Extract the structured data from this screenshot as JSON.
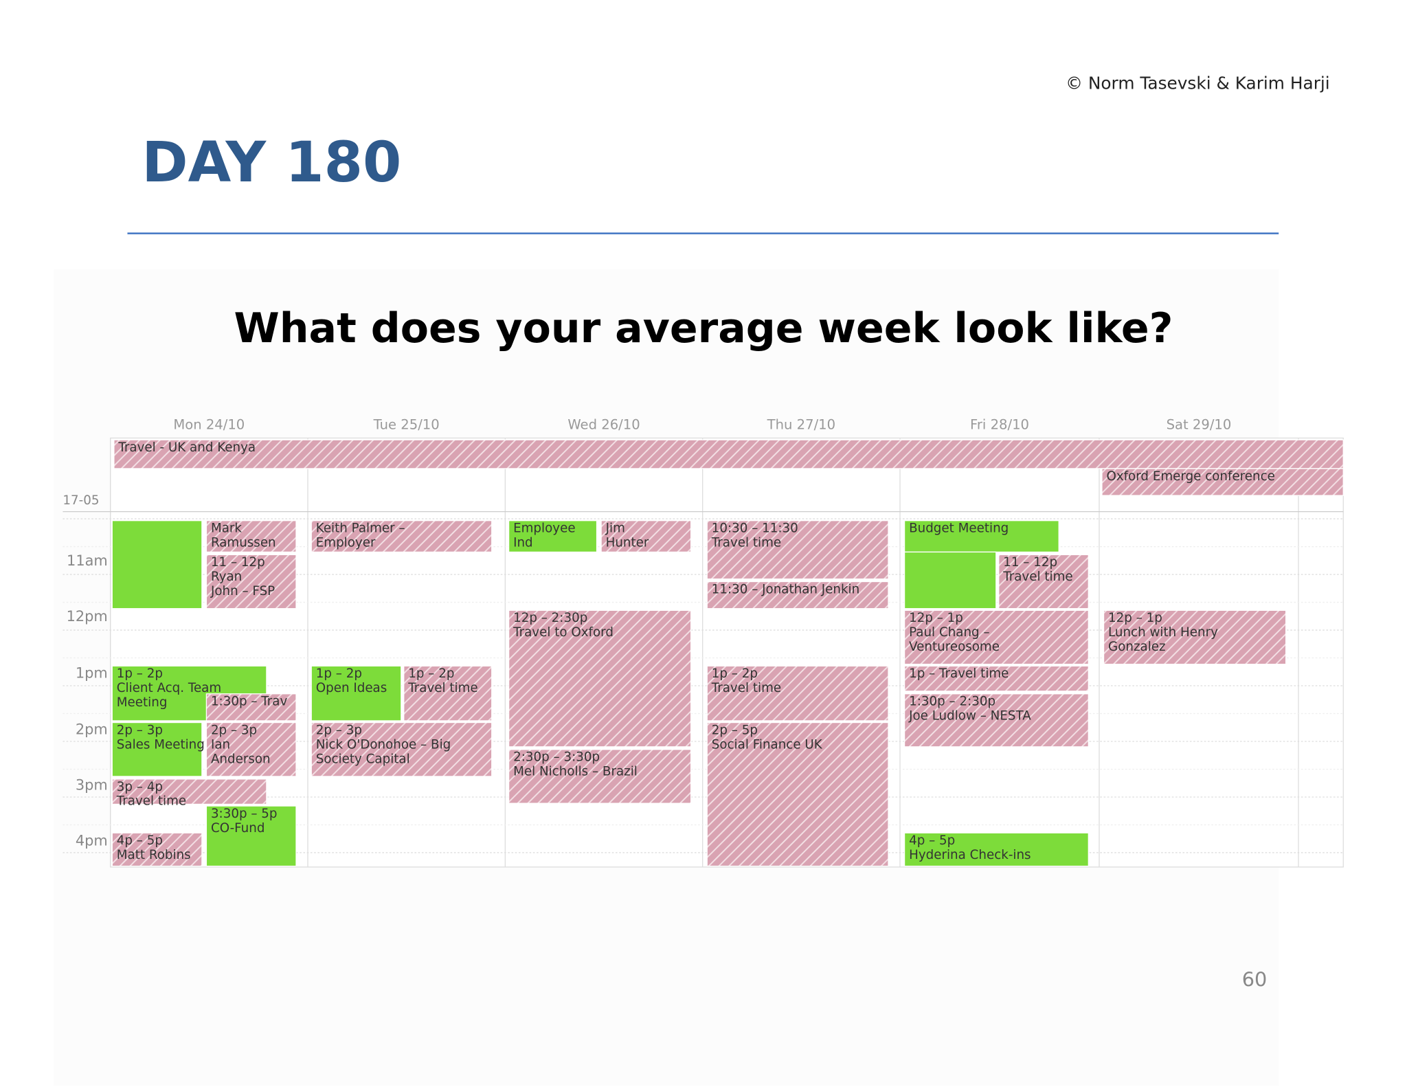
{
  "header": {
    "copyright": "© Norm Tasevski & Karim Harji",
    "title": "DAY 180"
  },
  "question": "What does your average week look like?",
  "calendar": {
    "days": [
      "Mon 24/10",
      "Tue 25/10",
      "Wed 26/10",
      "Thu 27/10",
      "Fri 28/10",
      "Sat 29/10"
    ],
    "allday_label": "17-05",
    "hours": [
      "11am",
      "12pm",
      "1pm",
      "2pm",
      "3pm",
      "4pm"
    ],
    "green": "#7ddc3a",
    "pink": "#d9a3b2",
    "events": [
      {
        "color": "pink",
        "lines": [
          "Travel - UK and Kenya"
        ]
      },
      {
        "color": "pink",
        "lines": [
          "Oxford Emerge conference"
        ]
      },
      {
        "color": "green",
        "lines": []
      },
      {
        "color": "pink",
        "lines": [
          "Mark",
          "Ramussen"
        ]
      },
      {
        "color": "pink",
        "lines": [
          "11 – 12p",
          "Ryan",
          "John – FSP"
        ]
      },
      {
        "color": "green",
        "lines": [
          "1p – 2p",
          "Client Acq. Team",
          "Meeting"
        ]
      },
      {
        "color": "pink",
        "lines": [
          "1:30p – Trav"
        ]
      },
      {
        "color": "green",
        "lines": [
          "2p – 3p",
          "Sales Meeting"
        ]
      },
      {
        "color": "pink",
        "lines": [
          "2p – 3p",
          "Ian",
          "Anderson"
        ]
      },
      {
        "color": "pink",
        "lines": [
          "3p – 4p",
          "Travel time"
        ]
      },
      {
        "color": "green",
        "lines": [
          "3:30p – 5p",
          "CO-Fund"
        ]
      },
      {
        "color": "pink",
        "lines": [
          "4p – 5p",
          "Matt Robins"
        ]
      },
      {
        "color": "pink",
        "lines": [
          "Keith Palmer –",
          "Employer"
        ]
      },
      {
        "color": "green",
        "lines": [
          "1p – 2p",
          "Open Ideas"
        ]
      },
      {
        "color": "pink",
        "lines": [
          "1p – 2p",
          "Travel time"
        ]
      },
      {
        "color": "pink",
        "lines": [
          "2p – 3p",
          "Nick O'Donohoe – Big",
          "Society Capital"
        ]
      },
      {
        "color": "green",
        "lines": [
          "Employee",
          "Ind"
        ]
      },
      {
        "color": "pink",
        "lines": [
          "Jim",
          "Hunter"
        ]
      },
      {
        "color": "pink",
        "lines": [
          "12p – 2:30p",
          "Travel to Oxford"
        ]
      },
      {
        "color": "pink",
        "lines": [
          "2:30p – 3:30p",
          "Mel Nicholls – Brazil"
        ]
      },
      {
        "color": "pink",
        "lines": [
          "10:30 – 11:30",
          "Travel time"
        ]
      },
      {
        "color": "pink",
        "lines": [
          "11:30 – Jonathan Jenkin"
        ]
      },
      {
        "color": "pink",
        "lines": [
          "1p – 2p",
          "Travel time"
        ]
      },
      {
        "color": "pink",
        "lines": [
          "2p – 5p",
          "Social Finance UK"
        ]
      },
      {
        "color": "green",
        "lines": [
          "Budget Meeting"
        ]
      },
      {
        "color": "green",
        "lines": []
      },
      {
        "color": "pink",
        "lines": [
          "11 – 12p",
          "Travel time"
        ]
      },
      {
        "color": "pink",
        "lines": [
          "12p – 1p",
          "Paul Chang –",
          "Ventureosome"
        ]
      },
      {
        "color": "pink",
        "lines": [
          "1p – Travel time"
        ]
      },
      {
        "color": "pink",
        "lines": [
          "1:30p – 2:30p",
          "Joe Ludlow – NESTA"
        ]
      },
      {
        "color": "green",
        "lines": [
          "4p – 5p",
          "Hyderina Check-ins"
        ]
      },
      {
        "color": "pink",
        "lines": [
          "12p – 1p",
          "Lunch with Henry",
          "Gonzalez"
        ]
      }
    ]
  },
  "page_number": "60"
}
